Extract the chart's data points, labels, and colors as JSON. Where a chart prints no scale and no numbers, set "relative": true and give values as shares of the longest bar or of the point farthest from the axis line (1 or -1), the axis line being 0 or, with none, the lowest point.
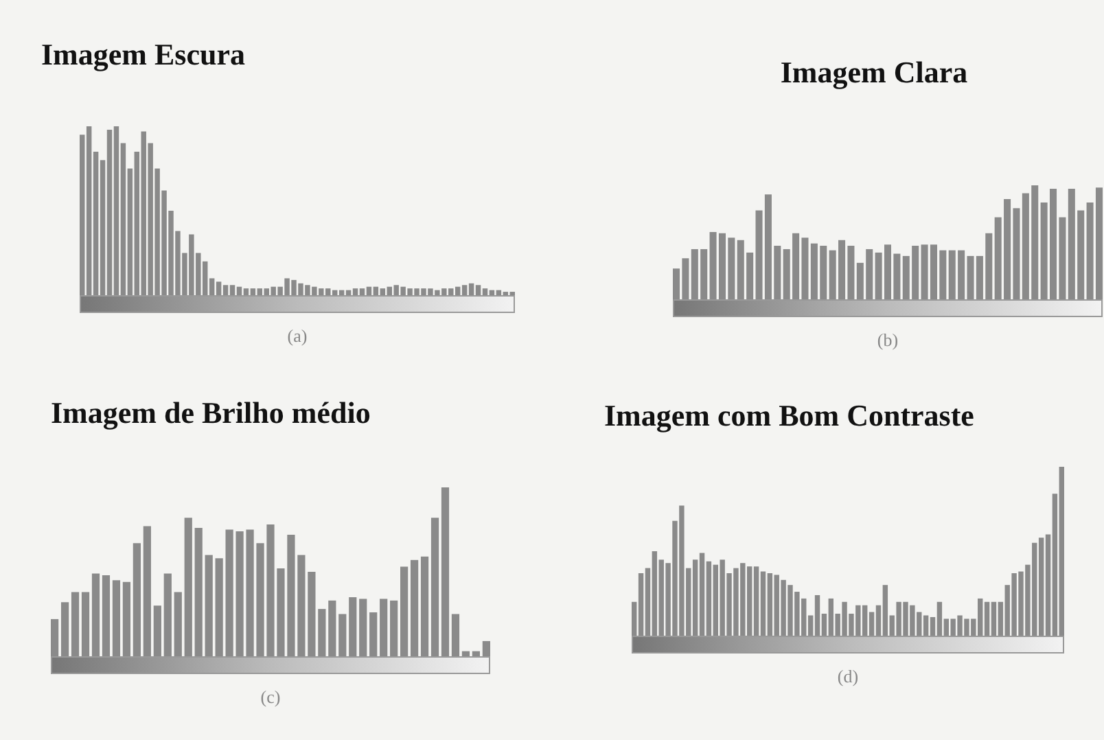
{
  "chart_data": [
    {
      "type": "bar",
      "title": "Imagem Escura",
      "relative": true,
      "color": "#8a8a8a",
      "annotations": [
        "(a)"
      ],
      "categories": [
        null,
        null,
        null,
        null,
        null,
        null,
        null,
        null,
        null,
        null,
        null,
        null,
        null,
        null,
        null,
        null,
        null,
        null,
        null,
        null,
        null,
        null,
        null,
        null,
        null,
        null,
        null,
        null,
        null,
        null,
        null,
        null,
        null,
        null,
        null,
        null,
        null,
        null,
        null,
        null,
        null,
        null,
        null,
        null,
        null,
        null,
        null,
        null,
        null,
        null,
        null,
        null,
        null,
        null,
        null,
        null,
        null,
        null,
        null,
        null,
        null,
        null,
        null,
        null
      ],
      "values": [
        0.95,
        1.0,
        0.85,
        0.8,
        0.98,
        1.0,
        0.9,
        0.75,
        0.85,
        0.97,
        0.9,
        0.75,
        0.62,
        0.5,
        0.38,
        0.25,
        0.36,
        0.25,
        0.2,
        0.1,
        0.08,
        0.06,
        0.06,
        0.05,
        0.04,
        0.04,
        0.04,
        0.04,
        0.05,
        0.05,
        0.1,
        0.09,
        0.07,
        0.06,
        0.05,
        0.04,
        0.04,
        0.03,
        0.03,
        0.03,
        0.04,
        0.04,
        0.05,
        0.05,
        0.04,
        0.05,
        0.06,
        0.05,
        0.04,
        0.04,
        0.04,
        0.04,
        0.03,
        0.04,
        0.04,
        0.05,
        0.06,
        0.07,
        0.06,
        0.04,
        0.03,
        0.03,
        0.02,
        0.02
      ]
    },
    {
      "type": "bar",
      "title": "Imagem Clara",
      "relative": true,
      "color": "#8a8a8a",
      "annotations": [
        "(b)"
      ],
      "categories": [
        null,
        null,
        null,
        null,
        null,
        null,
        null,
        null,
        null,
        null,
        null,
        null,
        null,
        null,
        null,
        null,
        null,
        null,
        null,
        null,
        null,
        null,
        null,
        null,
        null,
        null,
        null,
        null,
        null,
        null,
        null,
        null,
        null,
        null,
        null,
        null,
        null,
        null,
        null,
        null,
        null,
        null,
        null,
        null,
        null,
        null,
        null
      ],
      "values": [
        0.27,
        0.36,
        0.44,
        0.44,
        0.59,
        0.58,
        0.54,
        0.52,
        0.41,
        0.78,
        0.92,
        0.47,
        0.44,
        0.58,
        0.54,
        0.49,
        0.47,
        0.43,
        0.52,
        0.47,
        0.32,
        0.44,
        0.41,
        0.48,
        0.4,
        0.38,
        0.47,
        0.48,
        0.48,
        0.43,
        0.43,
        0.43,
        0.38,
        0.38,
        0.58,
        0.72,
        0.88,
        0.8,
        0.93,
        1.0,
        0.85,
        0.97,
        0.72,
        0.97,
        0.78,
        0.85,
        0.98
      ]
    },
    {
      "type": "bar",
      "title": "Imagem de Brilho médio",
      "relative": true,
      "color": "#8a8a8a",
      "annotations": [
        "(c)"
      ],
      "categories": [
        null,
        null,
        null,
        null,
        null,
        null,
        null,
        null,
        null,
        null,
        null,
        null,
        null,
        null,
        null,
        null,
        null,
        null,
        null,
        null,
        null,
        null,
        null,
        null,
        null,
        null,
        null,
        null,
        null,
        null,
        null,
        null,
        null,
        null,
        null,
        null,
        null,
        null,
        null,
        null,
        null,
        null,
        null
      ],
      "values": [
        0.22,
        0.32,
        0.38,
        0.38,
        0.49,
        0.48,
        0.45,
        0.44,
        0.67,
        0.77,
        0.3,
        0.49,
        0.38,
        0.82,
        0.76,
        0.6,
        0.58,
        0.75,
        0.74,
        0.75,
        0.67,
        0.78,
        0.52,
        0.72,
        0.6,
        0.5,
        0.28,
        0.33,
        0.25,
        0.35,
        0.34,
        0.26,
        0.34,
        0.33,
        0.53,
        0.57,
        0.59,
        0.82,
        1.0,
        0.25,
        0.03,
        0.03,
        0.09
      ]
    },
    {
      "type": "bar",
      "title": "Imagem com Bom Contraste",
      "relative": true,
      "color": "#8a8a8a",
      "annotations": [
        "(d)"
      ],
      "categories": [
        null,
        null,
        null,
        null,
        null,
        null,
        null,
        null,
        null,
        null,
        null,
        null,
        null,
        null,
        null,
        null,
        null,
        null,
        null,
        null,
        null,
        null,
        null,
        null,
        null,
        null,
        null,
        null,
        null,
        null,
        null,
        null,
        null,
        null,
        null,
        null,
        null,
        null,
        null,
        null,
        null,
        null,
        null,
        null,
        null,
        null,
        null,
        null,
        null,
        null,
        null,
        null,
        null,
        null,
        null,
        null,
        null,
        null,
        null,
        null,
        null,
        null,
        null,
        null
      ],
      "values": [
        0.2,
        0.37,
        0.4,
        0.5,
        0.45,
        0.43,
        0.68,
        0.77,
        0.4,
        0.45,
        0.49,
        0.44,
        0.42,
        0.45,
        0.37,
        0.4,
        0.43,
        0.41,
        0.41,
        0.38,
        0.37,
        0.36,
        0.33,
        0.3,
        0.26,
        0.22,
        0.12,
        0.24,
        0.13,
        0.22,
        0.13,
        0.2,
        0.13,
        0.18,
        0.18,
        0.14,
        0.18,
        0.3,
        0.12,
        0.2,
        0.2,
        0.18,
        0.14,
        0.12,
        0.11,
        0.2,
        0.1,
        0.1,
        0.12,
        0.1,
        0.1,
        0.22,
        0.2,
        0.2,
        0.2,
        0.3,
        0.37,
        0.38,
        0.42,
        0.55,
        0.58,
        0.6,
        0.84,
        1.0
      ]
    }
  ]
}
